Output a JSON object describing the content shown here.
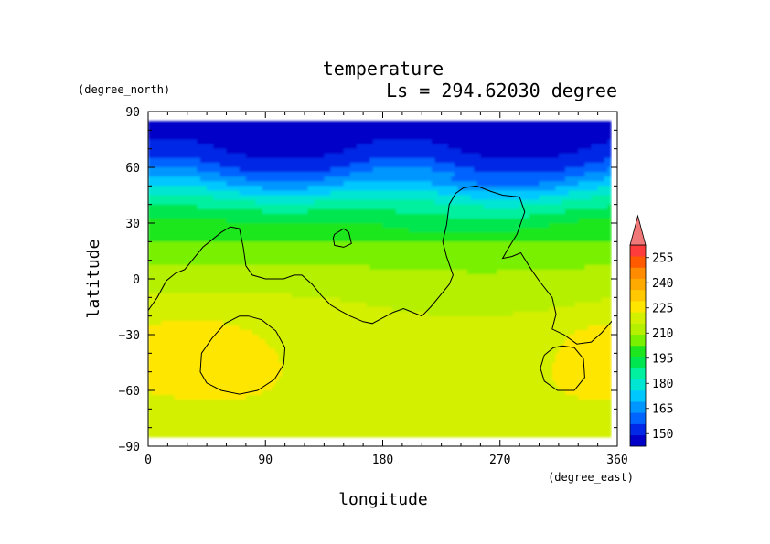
{
  "chart_data": {
    "type": "heatmap",
    "title": "temperature",
    "subtitle": "Ls = 294.62030 degree",
    "xlabel": "longitude",
    "ylabel": "latitude",
    "x_unit": "(degree_east)",
    "y_unit": "(degree_north)",
    "xlim": [
      0,
      360
    ],
    "ylim": [
      -90,
      90
    ],
    "x_ticks": [
      "0",
      "90",
      "180",
      "270",
      "360"
    ],
    "y_ticks": [
      "90",
      "60",
      "30",
      "0",
      "−30",
      "−60",
      "−90"
    ],
    "data_extent": {
      "lon": [
        0,
        355
      ],
      "lat": [
        -85,
        85
      ]
    },
    "colorbar": {
      "min": 142.5,
      "max": 262.5,
      "step": 7.5,
      "tick_labels": [
        "150",
        "165",
        "180",
        "195",
        "210",
        "225",
        "240",
        "255"
      ],
      "extend": "max",
      "colors": [
        "#0000c8",
        "#0028e6",
        "#0064ff",
        "#0096ff",
        "#00c8ff",
        "#00e6d2",
        "#00f0a0",
        "#00e650",
        "#1ee61e",
        "#78f000",
        "#b4f000",
        "#d2f000",
        "#ffe600",
        "#ffc800",
        "#ffaa00",
        "#ff8c00",
        "#ff5a00",
        "#ff3c3c"
      ],
      "overflow_color": "#f07878"
    },
    "temperature_field": {
      "note": "approx. zonal structure; value(lat) in K, with longitude-dependent modulation",
      "lat": [
        85,
        75,
        65,
        60,
        55,
        50,
        45,
        40,
        35,
        30,
        20,
        10,
        0,
        -10,
        -20,
        -30,
        -40,
        -50,
        -60,
        -70,
        -80,
        -85
      ],
      "value": [
        145,
        147,
        152,
        158,
        166,
        175,
        184,
        192,
        198,
        204,
        210,
        216,
        222,
        226,
        229,
        231,
        232,
        232,
        231,
        229,
        227,
        226
      ]
    },
    "contour_lines": [
      {
        "name": "coastline-main",
        "points": [
          [
            0,
            -17
          ],
          [
            7,
            -10
          ],
          [
            14,
            -1
          ],
          [
            21,
            3
          ],
          [
            28,
            5
          ],
          [
            35,
            11
          ],
          [
            42,
            17
          ],
          [
            49,
            21
          ],
          [
            56,
            25
          ],
          [
            63,
            28
          ],
          [
            70,
            27
          ],
          [
            73,
            17
          ],
          [
            75,
            7
          ],
          [
            80,
            2
          ],
          [
            90,
            0
          ],
          [
            104,
            0
          ],
          [
            112,
            2
          ],
          [
            118,
            2
          ],
          [
            126,
            -3
          ],
          [
            133,
            -9
          ],
          [
            140,
            -14
          ],
          [
            147,
            -17
          ],
          [
            155,
            -20
          ],
          [
            165,
            -23
          ],
          [
            172,
            -24
          ],
          [
            180,
            -21
          ],
          [
            188,
            -18
          ],
          [
            196,
            -16
          ],
          [
            203,
            -18
          ],
          [
            210,
            -20
          ],
          [
            217,
            -15
          ],
          [
            224,
            -9
          ],
          [
            231,
            -3
          ],
          [
            234,
            2
          ],
          [
            229,
            12
          ],
          [
            226,
            20
          ],
          [
            229,
            29
          ],
          [
            231,
            40
          ],
          [
            236,
            46
          ],
          [
            242,
            49
          ],
          [
            252,
            50
          ],
          [
            263,
            47
          ],
          [
            272,
            45
          ],
          [
            285,
            44
          ],
          [
            289,
            36
          ],
          [
            283,
            24
          ],
          [
            276,
            16
          ],
          [
            272,
            11
          ],
          [
            279,
            12
          ],
          [
            286,
            14
          ],
          [
            294,
            5
          ],
          [
            300,
            -1
          ],
          [
            310,
            -10
          ],
          [
            313,
            -19
          ],
          [
            310,
            -27
          ],
          [
            319,
            -30
          ],
          [
            329,
            -35
          ],
          [
            340,
            -34
          ],
          [
            348,
            -29
          ],
          [
            358,
            -21
          ]
        ]
      },
      {
        "name": "contour-loop-west",
        "points": [
          [
            70,
            -20
          ],
          [
            59,
            -24
          ],
          [
            49,
            -32
          ],
          [
            41,
            -40
          ],
          [
            40,
            -50
          ],
          [
            45,
            -56
          ],
          [
            56,
            -60
          ],
          [
            70,
            -62
          ],
          [
            84,
            -60
          ],
          [
            97,
            -54
          ],
          [
            104,
            -46
          ],
          [
            105,
            -37
          ],
          [
            98,
            -28
          ],
          [
            87,
            -22
          ],
          [
            77,
            -20
          ],
          [
            70,
            -20
          ]
        ]
      },
      {
        "name": "contour-loop-north",
        "points": [
          [
            143,
            24
          ],
          [
            150,
            27
          ],
          [
            154,
            25
          ],
          [
            156,
            19
          ],
          [
            150,
            17
          ],
          [
            143,
            18
          ],
          [
            142,
            22
          ],
          [
            143,
            24
          ]
        ]
      },
      {
        "name": "contour-loop-east",
        "points": [
          [
            318,
            -36
          ],
          [
            327,
            -37
          ],
          [
            334,
            -43
          ],
          [
            335,
            -53
          ],
          [
            327,
            -60
          ],
          [
            314,
            -60
          ],
          [
            304,
            -55
          ],
          [
            301,
            -48
          ],
          [
            304,
            -41
          ],
          [
            311,
            -37
          ],
          [
            318,
            -36
          ]
        ]
      }
    ]
  }
}
